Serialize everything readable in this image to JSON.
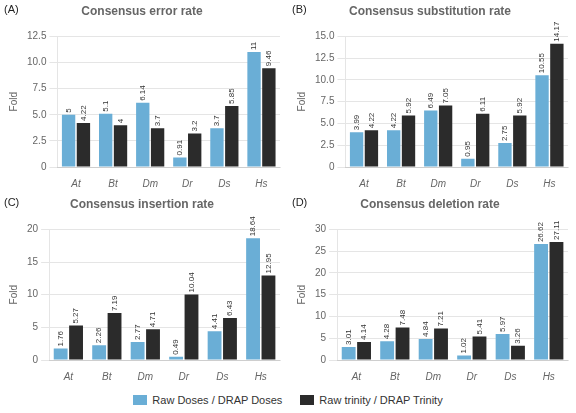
{
  "chart_data": [
    {
      "type": "bar",
      "title": "Consensus error rate",
      "annotations": [
        "(A)"
      ],
      "categories": [
        "At",
        "Bt",
        "Dm",
        "Dr",
        "Ds",
        "Hs"
      ],
      "series": [
        {
          "name": "Raw Doses / DRAP Doses",
          "color": "#6aaed6",
          "values": [
            5.0,
            5.1,
            6.14,
            0.91,
            3.7,
            11.0
          ]
        },
        {
          "name": "Raw trinity / DRAP Trinity",
          "color": "#2b2b2b",
          "values": [
            4.22,
            4.0,
            3.7,
            3.2,
            5.85,
            9.46
          ]
        }
      ],
      "ylabel": "Fold",
      "ylim": [
        0,
        12.5
      ],
      "yticks": [
        0,
        2.5,
        {
          "value": 5,
          "label": "5.0"
        },
        7.5,
        {
          "value": 10,
          "label": "10.0"
        },
        12.5
      ],
      "grid": true,
      "legend": "bottom",
      "data_labels": true
    },
    {
      "type": "bar",
      "title": "Consensus substitution rate",
      "annotations": [
        "(B)"
      ],
      "categories": [
        "At",
        "Bt",
        "Dm",
        "Dr",
        "Ds",
        "Hs"
      ],
      "series": [
        {
          "name": "Raw Doses / DRAP Doses",
          "color": "#6aaed6",
          "values": [
            3.99,
            4.22,
            6.49,
            0.95,
            2.75,
            10.55
          ]
        },
        {
          "name": "Raw trinity / DRAP Trinity",
          "color": "#2b2b2b",
          "values": [
            4.22,
            5.92,
            7.05,
            6.11,
            5.92,
            14.17
          ]
        }
      ],
      "ylabel": "Fold",
      "ylim": [
        0,
        15
      ],
      "yticks": [
        0,
        2.5,
        {
          "value": 5,
          "label": "5.0"
        },
        7.5,
        {
          "value": 10,
          "label": "10.0"
        },
        12.5,
        {
          "value": 15,
          "label": "15.0"
        }
      ],
      "grid": true,
      "legend": "bottom",
      "data_labels": true
    },
    {
      "type": "bar",
      "title": "Consensus insertion rate",
      "annotations": [
        "(C)"
      ],
      "categories": [
        "At",
        "Bt",
        "Dm",
        "Dr",
        "Ds",
        "Hs"
      ],
      "series": [
        {
          "name": "Raw Doses / DRAP Doses",
          "color": "#6aaed6",
          "values": [
            1.76,
            2.26,
            2.77,
            0.49,
            4.41,
            18.64
          ]
        },
        {
          "name": "Raw trinity / DRAP Trinity",
          "color": "#2b2b2b",
          "values": [
            5.27,
            7.19,
            4.71,
            10.04,
            6.43,
            12.95
          ]
        }
      ],
      "ylabel": "Fold",
      "ylim": [
        0,
        20
      ],
      "yticks": [
        0,
        5,
        10,
        15,
        20
      ],
      "grid": true,
      "legend": "bottom",
      "data_labels": true
    },
    {
      "type": "bar",
      "title": "Consensus deletion rate",
      "annotations": [
        "(D)"
      ],
      "categories": [
        "At",
        "Bt",
        "Dm",
        "Dr",
        "Ds",
        "Hs"
      ],
      "series": [
        {
          "name": "Raw Doses / DRAP Doses",
          "color": "#6aaed6",
          "values": [
            3.01,
            4.28,
            4.84,
            1.02,
            5.97,
            26.62
          ]
        },
        {
          "name": "Raw trinity / DRAP Trinity",
          "color": "#2b2b2b",
          "values": [
            4.14,
            7.48,
            7.21,
            5.41,
            3.26,
            27.11
          ]
        }
      ],
      "ylabel": "Fold",
      "ylim": [
        0,
        30
      ],
      "yticks": [
        0,
        5,
        10,
        15,
        20,
        25,
        30
      ],
      "grid": true,
      "legend": "bottom",
      "data_labels": true
    }
  ]
}
